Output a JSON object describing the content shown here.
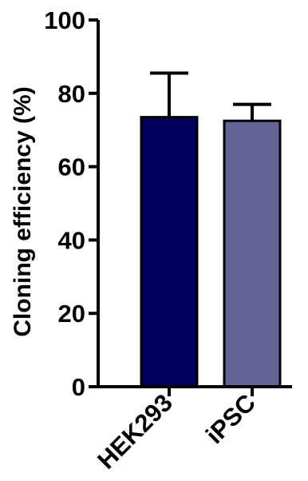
{
  "chart_data": {
    "type": "bar",
    "title": "",
    "xlabel": "",
    "ylabel": "Cloning efficiency (%)",
    "categories": [
      "HEK293",
      "iPSC"
    ],
    "values": [
      73.5,
      72.5
    ],
    "error_upper": [
      85.5,
      77
    ],
    "ylim": [
      0,
      100
    ],
    "yticks": [
      "0",
      "20",
      "40",
      "60",
      "80",
      "100"
    ],
    "bar_colors": [
      "#00005c",
      "#636599"
    ],
    "grid": false,
    "legend": "none"
  }
}
